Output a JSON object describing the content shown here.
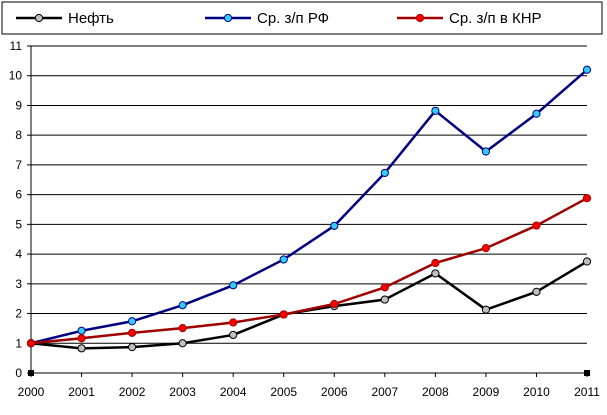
{
  "chart_data": {
    "type": "line",
    "title": "",
    "xlabel": "",
    "ylabel": "",
    "x": [
      "2000",
      "2001",
      "2002",
      "2003",
      "2004",
      "2005",
      "2006",
      "2007",
      "2008",
      "2009",
      "2010",
      "2011"
    ],
    "ylim": [
      0,
      11
    ],
    "yticks": [
      0,
      1,
      2,
      3,
      4,
      5,
      6,
      7,
      8,
      9,
      10,
      11
    ],
    "grid": "horizontal",
    "legend_position": "top",
    "series": [
      {
        "name": "Нефть",
        "line_color": "#000000",
        "marker_color": "#c0c0c0",
        "values": [
          1.0,
          0.83,
          0.87,
          1.0,
          1.28,
          1.97,
          2.25,
          2.47,
          3.35,
          2.13,
          2.73,
          3.75
        ]
      },
      {
        "name": "Ср. з/п РФ",
        "line_color": "#000080",
        "marker_color": "#33ccff",
        "values": [
          1.0,
          1.42,
          1.74,
          2.28,
          2.95,
          3.82,
          4.95,
          6.73,
          8.82,
          7.45,
          8.72,
          10.2
        ]
      },
      {
        "name": "Ср. з/п в КНР",
        "line_color": "#a00000",
        "marker_color": "#ff0000",
        "values": [
          1.0,
          1.17,
          1.35,
          1.51,
          1.7,
          1.97,
          2.32,
          2.88,
          3.7,
          4.2,
          4.96,
          5.88
        ]
      }
    ]
  }
}
